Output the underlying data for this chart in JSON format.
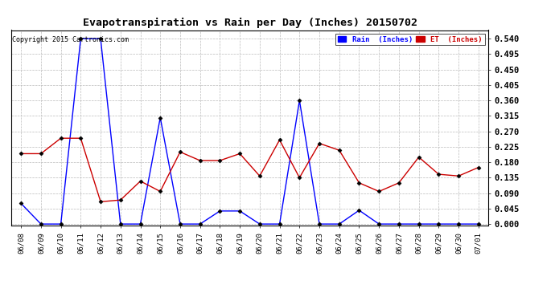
{
  "title": "Evapotranspiration vs Rain per Day (Inches) 20150702",
  "copyright": "Copyright 2015 Cartronics.com",
  "x_labels": [
    "06/08",
    "06/09",
    "06/10",
    "06/11",
    "06/12",
    "06/13",
    "06/14",
    "06/15",
    "06/16",
    "06/17",
    "06/18",
    "06/19",
    "06/20",
    "06/21",
    "06/22",
    "06/23",
    "06/24",
    "06/25",
    "06/26",
    "06/27",
    "06/28",
    "06/29",
    "06/30",
    "07/01"
  ],
  "rain_values": [
    0.06,
    0.0,
    0.0,
    0.54,
    0.54,
    0.0,
    0.0,
    0.31,
    0.0,
    0.0,
    0.038,
    0.038,
    0.0,
    0.0,
    0.36,
    0.0,
    0.0,
    0.04,
    0.0,
    0.0,
    0.0,
    0.0,
    0.0,
    0.0
  ],
  "et_values": [
    0.205,
    0.205,
    0.25,
    0.25,
    0.065,
    0.07,
    0.125,
    0.095,
    0.21,
    0.185,
    0.185,
    0.205,
    0.14,
    0.245,
    0.135,
    0.235,
    0.215,
    0.12,
    0.095,
    0.12,
    0.195,
    0.145,
    0.14,
    0.165
  ],
  "rain_color": "#0000ff",
  "et_color": "#cc0000",
  "bg_color": "#ffffff",
  "grid_color": "#bbbbbb",
  "y_ticks": [
    0.0,
    0.045,
    0.09,
    0.135,
    0.18,
    0.225,
    0.27,
    0.315,
    0.36,
    0.405,
    0.45,
    0.495,
    0.54
  ],
  "ylim": [
    -0.005,
    0.565
  ],
  "legend_rain_label": "Rain  (Inches)",
  "legend_et_label": "ET  (Inches)"
}
